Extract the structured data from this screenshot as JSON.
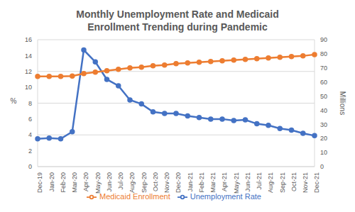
{
  "chart_data": {
    "type": "line",
    "title": "Monthly Unemployment Rate and Medicaid Enrollment Trending during Pandemic",
    "categories": [
      "Dec-19",
      "Jan-20",
      "Feb-20",
      "Mar-20",
      "Apr-20",
      "May-20",
      "Jun-20",
      "Jul-20",
      "Aug-20",
      "Sep-20",
      "Oct-20",
      "Nov-20",
      "Dec-20",
      "Jan-21",
      "Feb-21",
      "Mar-21",
      "Apr-21",
      "May-21",
      "Jun-21",
      "Jul-21",
      "Aug-21",
      "Sep-21",
      "Oct-21",
      "Nov-21",
      "Dec-21"
    ],
    "series": [
      {
        "name": "Unemployment Rate",
        "color": "#4472c4",
        "marker": "circle",
        "values": [
          3.5,
          3.6,
          3.5,
          4.4,
          14.7,
          13.2,
          11.0,
          10.2,
          8.4,
          7.9,
          6.9,
          6.7,
          6.7,
          6.4,
          6.2,
          6.0,
          6.0,
          5.8,
          5.9,
          5.4,
          5.2,
          4.8,
          4.6,
          4.2,
          3.9
        ]
      },
      {
        "name": "Medicaid Enrollment",
        "color": "#ed7d31",
        "marker": "circle",
        "axis": "y2",
        "values": [
          64,
          64,
          64,
          64.2,
          66,
          67,
          68,
          69,
          70,
          70.5,
          71.5,
          72,
          73,
          73.5,
          74,
          74.5,
          75,
          75.5,
          76,
          76.5,
          77,
          77.5,
          78,
          78.5,
          79.5
        ]
      }
    ],
    "ylabel": "%",
    "y2label": "Millions",
    "ylim": [
      0,
      16
    ],
    "yticks": [
      0,
      2,
      4,
      6,
      8,
      10,
      12,
      14,
      16
    ],
    "y2lim": [
      0,
      90
    ],
    "y2ticks": [
      0,
      10,
      20,
      30,
      40,
      50,
      60,
      70,
      80,
      90
    ],
    "grid": true,
    "legend": "bottom"
  }
}
